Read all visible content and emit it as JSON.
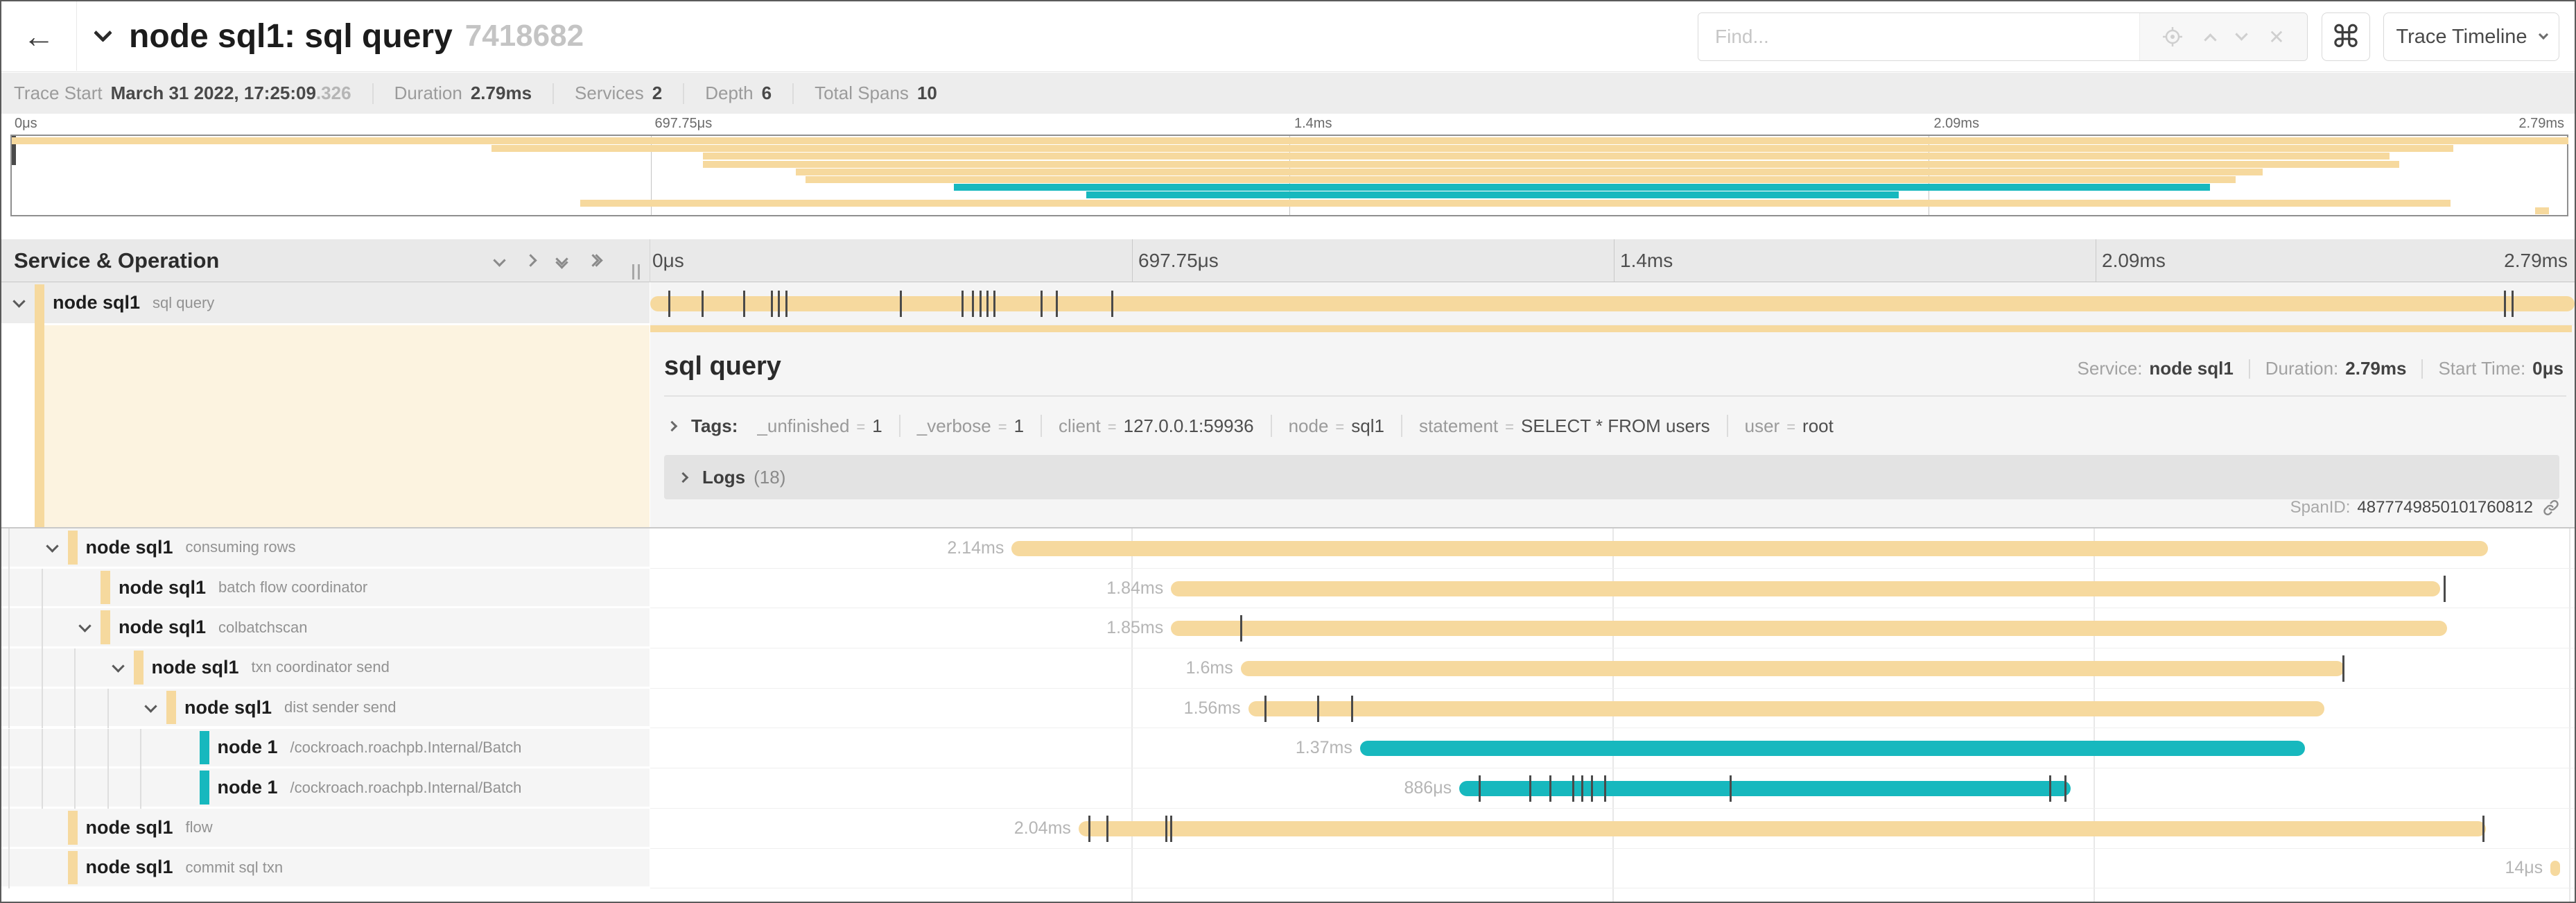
{
  "header": {
    "back_icon": "←",
    "title": "node sql1: sql query",
    "trace_id": "7418682",
    "find_placeholder": "Find...",
    "shortcut_icon": "⌘",
    "view_dropdown_label": "Trace Timeline"
  },
  "trace_meta": [
    {
      "label": "Trace Start",
      "value": "March 31 2022, 17:25:09",
      "suffix": ".326"
    },
    {
      "label": "Duration",
      "value": "2.79ms"
    },
    {
      "label": "Services",
      "value": "2"
    },
    {
      "label": "Depth",
      "value": "6"
    },
    {
      "label": "Total Spans",
      "value": "10"
    }
  ],
  "timeline": {
    "duration_ms": 2.79,
    "axis_labels": [
      "0μs",
      "697.75μs",
      "1.4ms",
      "2.09ms",
      "2.79ms"
    ],
    "colors": {
      "tan": "#f6d99e",
      "teal": "#17b8be"
    }
  },
  "section_header": {
    "title": "Service & Operation"
  },
  "spans": [
    {
      "service": "node sql1",
      "operation": "sql query",
      "depth": 0,
      "color": "tan",
      "start_ms": 0,
      "end_ms": 2.79,
      "duration_label": "",
      "has_chevron": true,
      "selected": true,
      "ticks": [
        0.026,
        0.074,
        0.135,
        0.175,
        0.185,
        0.196,
        0.362,
        0.451,
        0.466,
        0.477,
        0.487,
        0.497,
        0.566,
        0.588,
        0.668,
        2.687,
        2.699
      ]
    },
    {
      "service": "node sql1",
      "operation": "consuming rows",
      "depth": 1,
      "color": "tan",
      "start_ms": 0.524,
      "end_ms": 2.664,
      "duration_label": "2.14ms",
      "has_chevron": true,
      "ticks": []
    },
    {
      "service": "node sql1",
      "operation": "batch flow coordinator",
      "depth": 2,
      "color": "tan",
      "start_ms": 0.755,
      "end_ms": 2.595,
      "duration_label": "1.84ms",
      "has_chevron": false,
      "ticks": [
        2.6
      ]
    },
    {
      "service": "node sql1",
      "operation": "colbatchscan",
      "depth": 2,
      "color": "tan",
      "start_ms": 0.755,
      "end_ms": 2.605,
      "duration_label": "1.85ms",
      "has_chevron": true,
      "ticks": [
        0.855
      ]
    },
    {
      "service": "node sql1",
      "operation": "txn coordinator send",
      "depth": 3,
      "color": "tan",
      "start_ms": 0.856,
      "end_ms": 2.456,
      "duration_label": "1.6ms",
      "has_chevron": true,
      "ticks": [
        2.453
      ]
    },
    {
      "service": "node sql1",
      "operation": "dist sender send",
      "depth": 4,
      "color": "tan",
      "start_ms": 0.867,
      "end_ms": 2.427,
      "duration_label": "1.56ms",
      "has_chevron": true,
      "ticks": [
        0.89,
        0.967,
        1.016
      ]
    },
    {
      "service": "node 1",
      "operation": "/cockroach.roachpb.Internal/Batch",
      "depth": 5,
      "color": "teal",
      "start_ms": 1.029,
      "end_ms": 2.399,
      "duration_label": "1.37ms",
      "has_chevron": false,
      "ticks": []
    },
    {
      "service": "node 1",
      "operation": "/cockroach.roachpb.Internal/Batch",
      "depth": 5,
      "color": "teal",
      "start_ms": 1.173,
      "end_ms": 2.059,
      "duration_label": "886μs",
      "has_chevron": false,
      "ticks": [
        1.201,
        1.274,
        1.304,
        1.337,
        1.35,
        1.364,
        1.383,
        1.565,
        2.028,
        2.05
      ]
    },
    {
      "service": "node sql1",
      "operation": "flow",
      "depth": 1,
      "color": "tan",
      "start_ms": 0.621,
      "end_ms": 2.661,
      "duration_label": "2.04ms",
      "has_chevron": false,
      "ticks": [
        0.635,
        0.661,
        0.747,
        0.754,
        2.656
      ]
    },
    {
      "service": "node sql1",
      "operation": "commit sql txn",
      "depth": 1,
      "color": "tan",
      "start_ms": 2.755,
      "end_ms": 2.769,
      "duration_label": "14μs",
      "has_chevron": false,
      "ticks": []
    }
  ],
  "detail": {
    "title": "sql query",
    "service_label": "Service:",
    "service": "node sql1",
    "duration_label": "Duration:",
    "duration": "2.79ms",
    "start_label": "Start Time:",
    "start": "0μs",
    "tags_label": "Tags:",
    "tags": [
      {
        "key": "_unfinished",
        "value": "1"
      },
      {
        "key": "_verbose",
        "value": "1"
      },
      {
        "key": "client",
        "value": "127.0.0.1:59936"
      },
      {
        "key": "node",
        "value": "sql1"
      },
      {
        "key": "statement",
        "value": "SELECT * FROM users"
      },
      {
        "key": "user",
        "value": "root"
      }
    ],
    "logs_label": "Logs",
    "logs_count": "(18)",
    "span_id_label": "SpanID:",
    "span_id": "4877749850101760812"
  }
}
